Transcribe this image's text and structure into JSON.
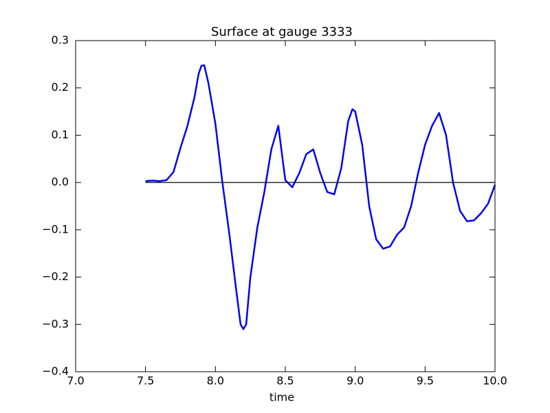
{
  "chart_data": {
    "type": "line",
    "title": "Surface at gauge 3333",
    "x_label": "time",
    "series": [
      {
        "color": "#0000ee",
        "x": [
          7.5,
          7.55,
          7.6,
          7.65,
          7.7,
          7.75,
          7.8,
          7.85,
          7.88,
          7.9,
          7.92,
          7.95,
          8.0,
          8.05,
          8.1,
          8.15,
          8.18,
          8.2,
          8.22,
          8.25,
          8.3,
          8.35,
          8.4,
          8.45,
          8.5,
          8.55,
          8.6,
          8.65,
          8.7,
          8.75,
          8.8,
          8.85,
          8.9,
          8.95,
          8.98,
          9.0,
          9.05,
          9.1,
          9.15,
          9.2,
          9.25,
          9.3,
          9.35,
          9.4,
          9.45,
          9.5,
          9.55,
          9.6,
          9.65,
          9.7,
          9.75,
          9.8,
          9.85,
          9.9,
          9.95,
          10.0
        ],
        "values": [
          0.003,
          0.004,
          0.003,
          0.005,
          0.022,
          0.073,
          0.12,
          0.18,
          0.23,
          0.247,
          0.248,
          0.21,
          0.124,
          0.0,
          -0.11,
          -0.23,
          -0.3,
          -0.31,
          -0.3,
          -0.2,
          -0.095,
          -0.02,
          0.07,
          0.12,
          0.005,
          -0.01,
          0.02,
          0.06,
          0.07,
          0.02,
          -0.02,
          -0.025,
          0.03,
          0.13,
          0.155,
          0.15,
          0.08,
          -0.05,
          -0.12,
          -0.14,
          -0.135,
          -0.11,
          -0.095,
          -0.05,
          0.02,
          0.08,
          0.12,
          0.147,
          0.1,
          0.0,
          -0.06,
          -0.082,
          -0.08,
          -0.065,
          -0.045,
          -0.005
        ]
      },
      {
        "color": "#000000",
        "x": [
          7.5,
          10.0
        ],
        "values": [
          0,
          0
        ]
      }
    ],
    "xlim": [
      7.0,
      10.0
    ],
    "xticks": [
      {
        "value": 7.0,
        "label": "7.0"
      },
      7.5,
      {
        "value": 8.0,
        "label": "8.0"
      },
      8.5,
      {
        "value": 9.0,
        "label": "9.0"
      },
      9.5,
      {
        "value": 10.0,
        "label": "10.0"
      }
    ],
    "ylim": [
      -0.4,
      0.3
    ],
    "yticks": [
      {
        "value": -0.4,
        "label": "−0.4"
      },
      {
        "value": -0.3,
        "label": "−0.3"
      },
      {
        "value": -0.2,
        "label": "−0.2"
      },
      {
        "value": -0.1,
        "label": "−0.1"
      },
      {
        "value": 0.0,
        "label": "0.0"
      },
      0.1,
      0.2,
      0.3
    ]
  }
}
